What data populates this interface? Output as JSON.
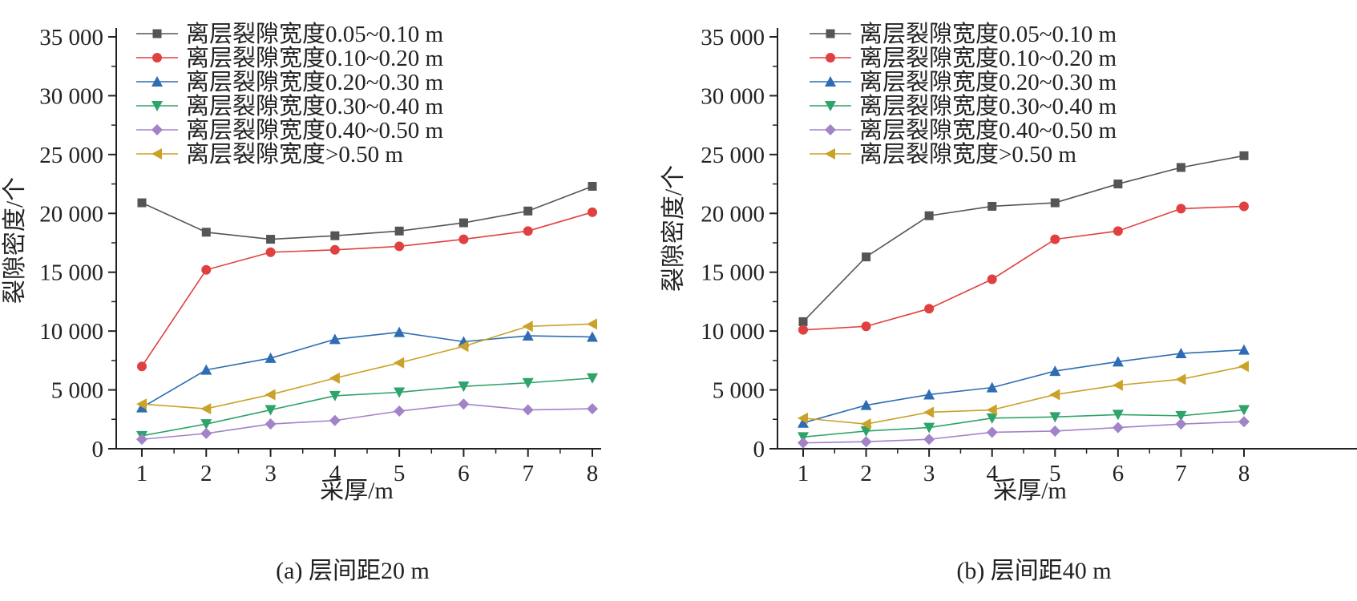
{
  "colors": {
    "gray": "#555555",
    "red": "#e04040",
    "blue": "#2e6db4",
    "green": "#2ea36a",
    "purple": "#a383c8",
    "gold": "#c9a227",
    "axis": "#222222"
  },
  "chart_data": [
    {
      "type": "line",
      "caption": "(a) 层间距20 m",
      "xlabel": "采厚/m",
      "ylabel": "裂隙密度/个",
      "x": [
        1,
        2,
        3,
        4,
        5,
        6,
        7,
        8
      ],
      "x_ticks": [
        "1",
        "2",
        "3",
        "4",
        "5",
        "6",
        "7",
        "8"
      ],
      "ylim": [
        0,
        35000
      ],
      "y_ticks": [
        "0",
        "5 000",
        "10 000",
        "15 000",
        "20 000",
        "25 000",
        "30 000",
        "35 000"
      ],
      "legend_position": "top-left",
      "series": [
        {
          "name": "离层裂隙宽度0.05~0.10 m",
          "color_key": "gray",
          "marker": "square",
          "values": [
            20900,
            18400,
            17800,
            18100,
            18500,
            19200,
            20200,
            22300
          ]
        },
        {
          "name": "离层裂隙宽度0.10~0.20 m",
          "color_key": "red",
          "marker": "circle",
          "values": [
            7000,
            15200,
            16700,
            16900,
            17200,
            17800,
            18500,
            20100
          ]
        },
        {
          "name": "离层裂隙宽度0.20~0.30 m",
          "color_key": "blue",
          "marker": "triangle-up",
          "values": [
            3500,
            6700,
            7700,
            9300,
            9900,
            9100,
            9600,
            9500
          ]
        },
        {
          "name": "离层裂隙宽度0.30~0.40 m",
          "color_key": "green",
          "marker": "triangle-down",
          "values": [
            1100,
            2100,
            3300,
            4500,
            4800,
            5300,
            5600,
            6000
          ]
        },
        {
          "name": "离层裂隙宽度0.40~0.50 m",
          "color_key": "purple",
          "marker": "diamond",
          "values": [
            800,
            1300,
            2100,
            2400,
            3200,
            3800,
            3300,
            3400
          ]
        },
        {
          "name": "离层裂隙宽度>0.50 m",
          "color_key": "gold",
          "marker": "triangle-left",
          "values": [
            3800,
            3400,
            4600,
            6000,
            7300,
            8700,
            10400,
            10600
          ]
        }
      ]
    },
    {
      "type": "line",
      "caption": "(b) 层间距40 m",
      "xlabel": "采厚/m",
      "ylabel": "裂隙密度/个",
      "x": [
        1,
        2,
        3,
        4,
        5,
        6,
        7,
        8
      ],
      "x_ticks": [
        "1",
        "2",
        "3",
        "4",
        "5",
        "6",
        "7",
        "8"
      ],
      "ylim": [
        0,
        35000
      ],
      "y_ticks": [
        "0",
        "5 000",
        "10 000",
        "15 000",
        "20 000",
        "25 000",
        "30 000",
        "35 000"
      ],
      "legend_position": "top-left",
      "series": [
        {
          "name": "离层裂隙宽度0.05~0.10 m",
          "color_key": "gray",
          "marker": "square",
          "values": [
            10800,
            16300,
            19800,
            20600,
            20900,
            22500,
            23900,
            24900
          ]
        },
        {
          "name": "离层裂隙宽度0.10~0.20 m",
          "color_key": "red",
          "marker": "circle",
          "values": [
            10100,
            10400,
            11900,
            14400,
            17800,
            18500,
            20400,
            20600
          ]
        },
        {
          "name": "离层裂隙宽度0.20~0.30 m",
          "color_key": "blue",
          "marker": "triangle-up",
          "values": [
            2200,
            3700,
            4600,
            5200,
            6600,
            7400,
            8100,
            8400
          ]
        },
        {
          "name": "离层裂隙宽度0.30~0.40 m",
          "color_key": "green",
          "marker": "triangle-down",
          "values": [
            1000,
            1500,
            1800,
            2600,
            2700,
            2900,
            2800,
            3300
          ]
        },
        {
          "name": "离层裂隙宽度0.40~0.50 m",
          "color_key": "purple",
          "marker": "diamond",
          "values": [
            500,
            600,
            800,
            1400,
            1500,
            1800,
            2100,
            2300
          ]
        },
        {
          "name": "离层裂隙宽度>0.50 m",
          "color_key": "gold",
          "marker": "triangle-left",
          "values": [
            2600,
            2100,
            3100,
            3300,
            4600,
            5400,
            5900,
            7000
          ]
        }
      ]
    }
  ]
}
